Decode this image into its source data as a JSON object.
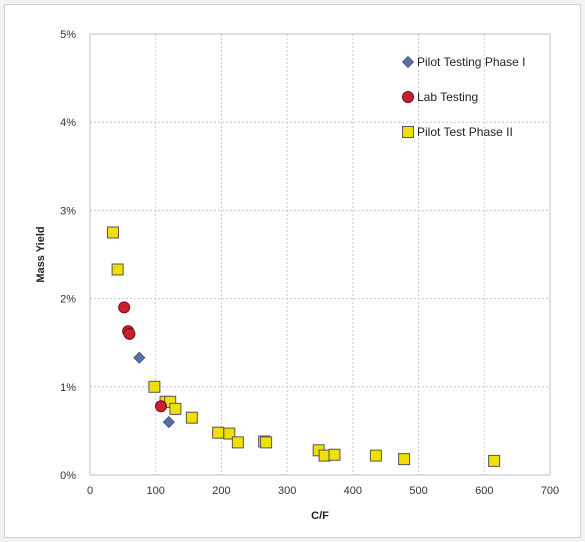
{
  "chart_data": {
    "type": "scatter",
    "title": "",
    "xlabel": "C/F",
    "ylabel": "Mass Yield",
    "xlim": [
      0,
      700
    ],
    "ylim": [
      0,
      5
    ],
    "x_ticks": [
      0,
      100,
      200,
      300,
      400,
      500,
      600,
      700
    ],
    "y_ticks": [
      0,
      1,
      2,
      3,
      4,
      5
    ],
    "x_tick_labels": [
      "0",
      "100",
      "200",
      "300",
      "400",
      "500",
      "600",
      "700"
    ],
    "y_tick_labels": [
      "0%",
      "1%",
      "2%",
      "3%",
      "4%",
      "5%"
    ],
    "y_unit": "%",
    "grid": "dotted",
    "legend_position": "top-right",
    "series": [
      {
        "name": "Pilot Testing Phase I",
        "marker": "diamond",
        "color": "#5b6fa6",
        "points": [
          [
            75,
            1.33
          ],
          [
            120,
            0.6
          ]
        ]
      },
      {
        "name": "Lab Testing",
        "marker": "circle",
        "color": "#c8202c",
        "points": [
          [
            52,
            1.9
          ],
          [
            58,
            1.63
          ],
          [
            60,
            1.6
          ],
          [
            108,
            0.78
          ]
        ]
      },
      {
        "name": "Pilot Test Phase II",
        "marker": "square",
        "color": "#f0e000",
        "points": [
          [
            35,
            2.75
          ],
          [
            42,
            2.33
          ],
          [
            98,
            1.0
          ],
          [
            115,
            0.83
          ],
          [
            122,
            0.83
          ],
          [
            130,
            0.75
          ],
          [
            155,
            0.65
          ],
          [
            195,
            0.48
          ],
          [
            212,
            0.47
          ],
          [
            225,
            0.37
          ],
          [
            265,
            0.38
          ],
          [
            268,
            0.37
          ],
          [
            348,
            0.28
          ],
          [
            357,
            0.22
          ],
          [
            372,
            0.23
          ],
          [
            435,
            0.22
          ],
          [
            478,
            0.18
          ],
          [
            615,
            0.16
          ]
        ]
      }
    ]
  }
}
